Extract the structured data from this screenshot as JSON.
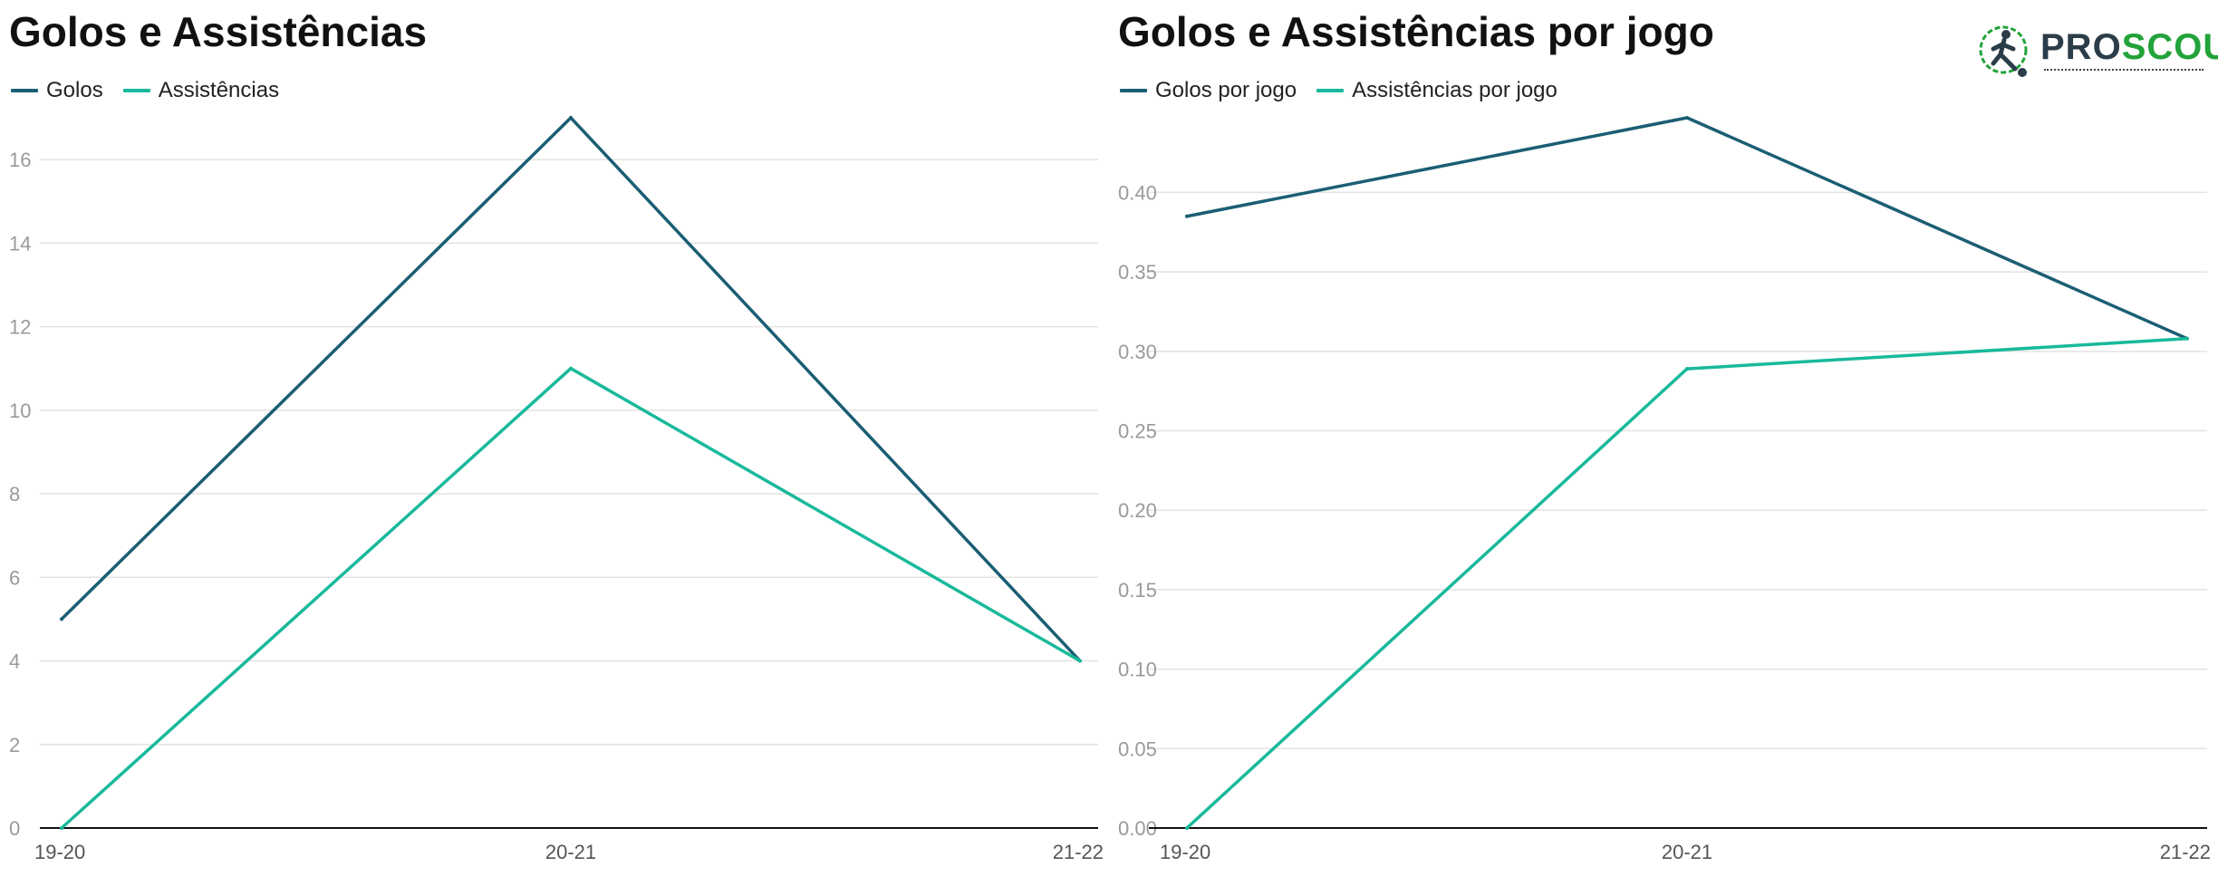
{
  "colors": {
    "series1": "#1b5e74",
    "series2": "#19b99b",
    "grid": "#e3e3e3",
    "axis": "#111111",
    "logo_dark": "#2b3d49",
    "logo_green": "#22a33a"
  },
  "logo": {
    "part1": "PRO",
    "part2": "SCOUT"
  },
  "chart_data": [
    {
      "type": "line",
      "title": "Golos e Assistências",
      "categories": [
        "19-20",
        "20-21",
        "21-22"
      ],
      "series": [
        {
          "name": "Golos",
          "values": [
            5,
            17,
            4
          ]
        },
        {
          "name": "Assistências",
          "values": [
            0,
            11,
            4
          ]
        }
      ],
      "ylim": [
        0,
        17
      ],
      "yticks": [
        0,
        2,
        4,
        6,
        8,
        10,
        12,
        14,
        16
      ],
      "ytick_labels": [
        "0",
        "2",
        "4",
        "6",
        "8",
        "10",
        "12",
        "14",
        "16"
      ],
      "grid": true,
      "legend": "top-left"
    },
    {
      "type": "line",
      "title": "Golos e Assistências por jogo",
      "categories": [
        "19-20",
        "20-21",
        "21-22"
      ],
      "series": [
        {
          "name": "Golos por jogo",
          "values": [
            0.385,
            0.447,
            0.308
          ]
        },
        {
          "name": "Assistências por jogo",
          "values": [
            0.0,
            0.289,
            0.308
          ]
        }
      ],
      "ylim": [
        0,
        0.447
      ],
      "yticks": [
        0,
        0.05,
        0.1,
        0.15,
        0.2,
        0.25,
        0.3,
        0.35,
        0.4
      ],
      "ytick_labels": [
        "0.00",
        "0.05",
        "0.10",
        "0.15",
        "0.20",
        "0.25",
        "0.30",
        "0.35",
        "0.40"
      ],
      "grid": true,
      "legend": "top-left"
    }
  ]
}
